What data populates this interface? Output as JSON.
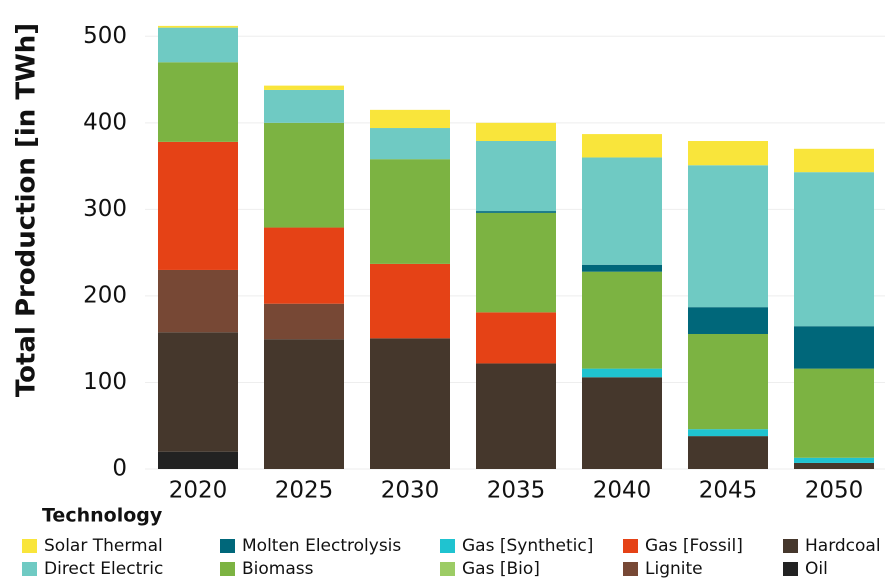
{
  "chart_data": {
    "type": "stacked_bar",
    "y_label": "Total Production [in TWh]",
    "legend_title": "Technology",
    "categories": [
      "2020",
      "2025",
      "2030",
      "2035",
      "2040",
      "2045",
      "2050"
    ],
    "series": [
      {
        "name": "Solar Thermal",
        "color": "#f9e53b",
        "values": [
          2,
          5,
          21,
          21,
          27,
          28,
          27
        ]
      },
      {
        "name": "Molten Electrolysis",
        "color": "#00677a",
        "values": [
          0,
          0,
          0,
          2,
          8,
          31,
          49
        ]
      },
      {
        "name": "Gas [Synthetic]",
        "color": "#1fc3d0",
        "values": [
          0,
          0,
          0,
          0,
          10,
          8,
          6
        ]
      },
      {
        "name": "Gas [Fossil]",
        "color": "#e54216",
        "values": [
          148,
          88,
          86,
          59,
          0,
          0,
          0
        ]
      },
      {
        "name": "Hardcoal",
        "color": "#45372c",
        "values": [
          138,
          150,
          151,
          122,
          106,
          38,
          7
        ]
      },
      {
        "name": "Direct Electric",
        "color": "#6fcac3",
        "values": [
          40,
          38,
          36,
          81,
          124,
          164,
          178
        ]
      },
      {
        "name": "Biomass",
        "color": "#7cb342",
        "values": [
          92,
          121,
          121,
          115,
          112,
          110,
          103
        ]
      },
      {
        "name": "Gas [Bio]",
        "color": "#9ccc65",
        "values": [
          0,
          0,
          0,
          0,
          0,
          0,
          0
        ]
      },
      {
        "name": "Lignite",
        "color": "#774835",
        "values": [
          72,
          41,
          0,
          0,
          0,
          0,
          0
        ]
      },
      {
        "name": "Oil",
        "color": "#222222",
        "values": [
          20,
          0,
          0,
          0,
          0,
          0,
          0
        ]
      }
    ],
    "ylim": [
      0,
      535
    ],
    "yticks": [
      0,
      100,
      200,
      300,
      400,
      500
    ],
    "grid": true
  }
}
